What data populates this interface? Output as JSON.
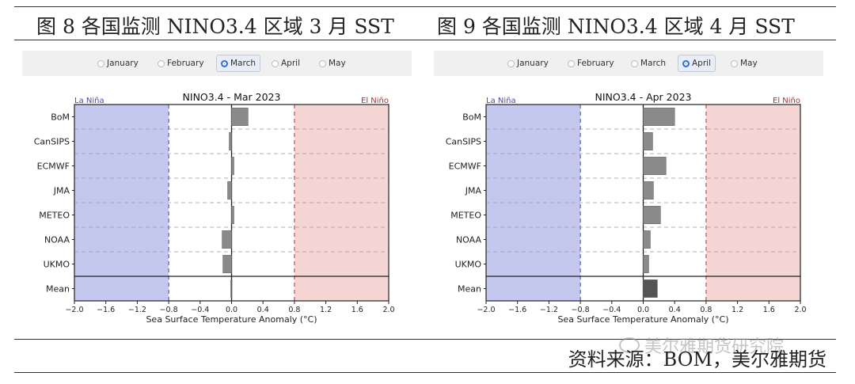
{
  "figures": [
    {
      "title": "图 8  各国监测 NINO3.4 区域 3 月 SST",
      "months": [
        "January",
        "February",
        "March",
        "April",
        "May"
      ],
      "selected_month": "March"
    },
    {
      "title": "图 9  各国监测 NINO3.4 区域 4 月 SST",
      "months": [
        "January",
        "February",
        "March",
        "April",
        "May"
      ],
      "selected_month": "April"
    }
  ],
  "source": "资料来源：BOM，美尔雅期货",
  "watermark": "美尔雅期货研究院",
  "colors": {
    "la_nina_fill": "#c5c8ee",
    "el_nino_fill": "#f6d5d5",
    "la_nina_text": "#4a4aa0",
    "el_nino_text": "#b03030",
    "bar": "#8a8a8a",
    "mean_bar": "#555555"
  },
  "chart_data": [
    {
      "type": "bar",
      "orientation": "horizontal",
      "title": "NINO3.4 - Mar 2023",
      "xlabel": "Sea Surface Temperature Anomaly (°C)",
      "xlim": [
        -2.0,
        2.0
      ],
      "xticks": [
        "−2.0",
        "−1.6",
        "−1.2",
        "−0.8",
        "−0.4",
        "0.0",
        "0.4",
        "0.8",
        "1.2",
        "1.6",
        "2.0"
      ],
      "la_nina_label": "La Niña",
      "el_nino_label": "El Niño",
      "thresholds": [
        -0.8,
        0.8
      ],
      "categories": [
        "BoM",
        "CanSIPS",
        "ECMWF",
        "JMA",
        "METEO",
        "NOAA",
        "UKMO",
        "Mean"
      ],
      "values": [
        0.21,
        -0.03,
        0.03,
        -0.05,
        0.03,
        -0.12,
        -0.11,
        -0.01
      ]
    },
    {
      "type": "bar",
      "orientation": "horizontal",
      "title": "NINO3.4 - Apr 2023",
      "xlabel": "Sea Surface Temperature Anomaly (°C)",
      "xlim": [
        -2.0,
        2.0
      ],
      "xticks": [
        "−2.0",
        "−1.6",
        "−1.2",
        "−0.8",
        "−0.4",
        "0.0",
        "0.4",
        "0.8",
        "1.2",
        "1.6",
        "2.0"
      ],
      "la_nina_label": "La Niña",
      "el_nino_label": "El Niño",
      "thresholds": [
        -0.8,
        0.8
      ],
      "categories": [
        "BoM",
        "CanSIPS",
        "ECMWF",
        "JMA",
        "METEO",
        "NOAA",
        "UKMO",
        "Mean"
      ],
      "values": [
        0.4,
        0.12,
        0.29,
        0.13,
        0.22,
        0.09,
        0.07,
        0.18
      ]
    }
  ]
}
